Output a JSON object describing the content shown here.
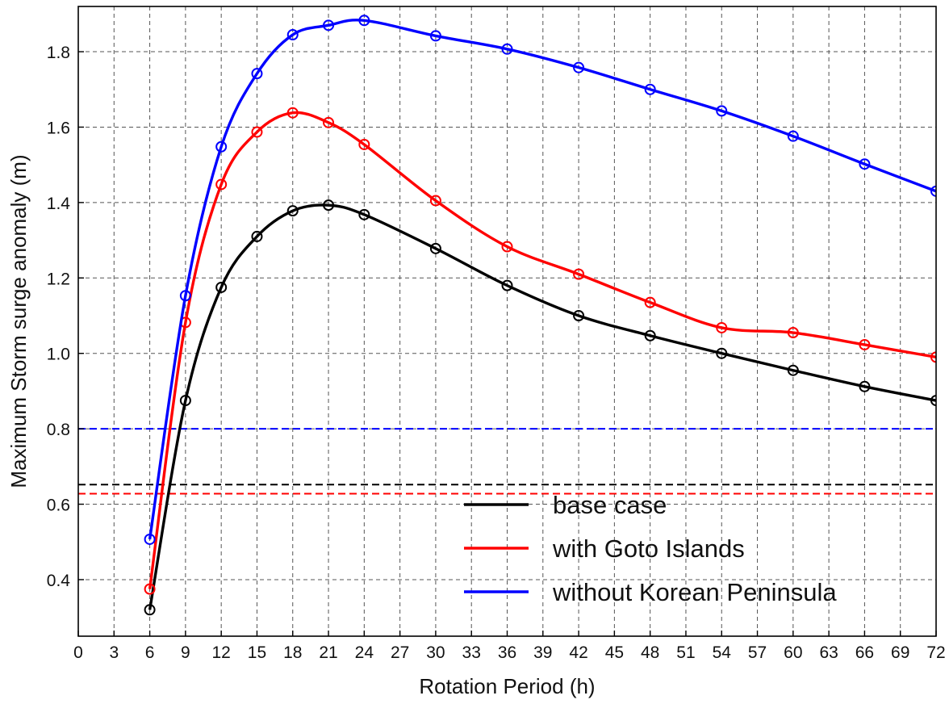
{
  "chart_data": {
    "type": "line",
    "xlabel": "Rotation Period (h)",
    "ylabel": "Maximum Storm surge anomaly (m)",
    "xlim": [
      0,
      72
    ],
    "ylim": [
      0.25,
      1.92
    ],
    "xticks": [
      0,
      3,
      6,
      9,
      12,
      15,
      18,
      21,
      24,
      27,
      30,
      33,
      36,
      39,
      42,
      45,
      48,
      51,
      54,
      57,
      60,
      63,
      66,
      69,
      72
    ],
    "xtick_labels": [
      "0",
      "3",
      "6",
      "9",
      "12",
      "15",
      "18",
      "21",
      "24",
      "27",
      "30",
      "33",
      "36",
      "39",
      "42",
      "45",
      "48",
      "51",
      "54",
      "57",
      "60",
      "63",
      "66",
      "69",
      "72"
    ],
    "yticks": [
      0.4,
      0.6,
      0.8,
      1.0,
      1.2,
      1.4,
      1.6,
      1.8
    ],
    "ytick_labels": [
      "0.4",
      "0.6",
      "0.8",
      "1.0",
      "1.2",
      "1.4",
      "1.6",
      "1.8"
    ],
    "grid": true,
    "legend_position": "bottom-right",
    "marker": "open-circle",
    "series": [
      {
        "name": "base case",
        "color": "#000000",
        "x": [
          6,
          9,
          12,
          15,
          18,
          21,
          24,
          30,
          36,
          42,
          48,
          54,
          60,
          66,
          72
        ],
        "values": [
          0.32,
          0.875,
          1.175,
          1.31,
          1.378,
          1.393,
          1.368,
          1.278,
          1.18,
          1.1,
          1.047,
          1.0,
          0.955,
          0.912,
          0.875
        ]
      },
      {
        "name": "with Goto Islands",
        "color": "#ff0000",
        "x": [
          6,
          9,
          12,
          15,
          18,
          21,
          24,
          30,
          36,
          42,
          48,
          54,
          60,
          66,
          72
        ],
        "values": [
          0.375,
          1.082,
          1.448,
          1.587,
          1.638,
          1.612,
          1.554,
          1.405,
          1.283,
          1.21,
          1.135,
          1.068,
          1.055,
          1.023,
          0.99
        ]
      },
      {
        "name": "without Korean Peninsula",
        "color": "#0000ff",
        "x": [
          6,
          9,
          12,
          15,
          18,
          21,
          24,
          30,
          36,
          42,
          48,
          54,
          60,
          66,
          72
        ],
        "values": [
          0.507,
          1.153,
          1.548,
          1.742,
          1.845,
          1.87,
          1.883,
          1.842,
          1.807,
          1.758,
          1.7,
          1.643,
          1.576,
          1.502,
          1.43
        ]
      }
    ],
    "reference_lines": [
      {
        "color": "#000000",
        "y": 0.652
      },
      {
        "color": "#ff0000",
        "y": 0.628
      },
      {
        "color": "#0000ff",
        "y": 0.8
      }
    ]
  }
}
